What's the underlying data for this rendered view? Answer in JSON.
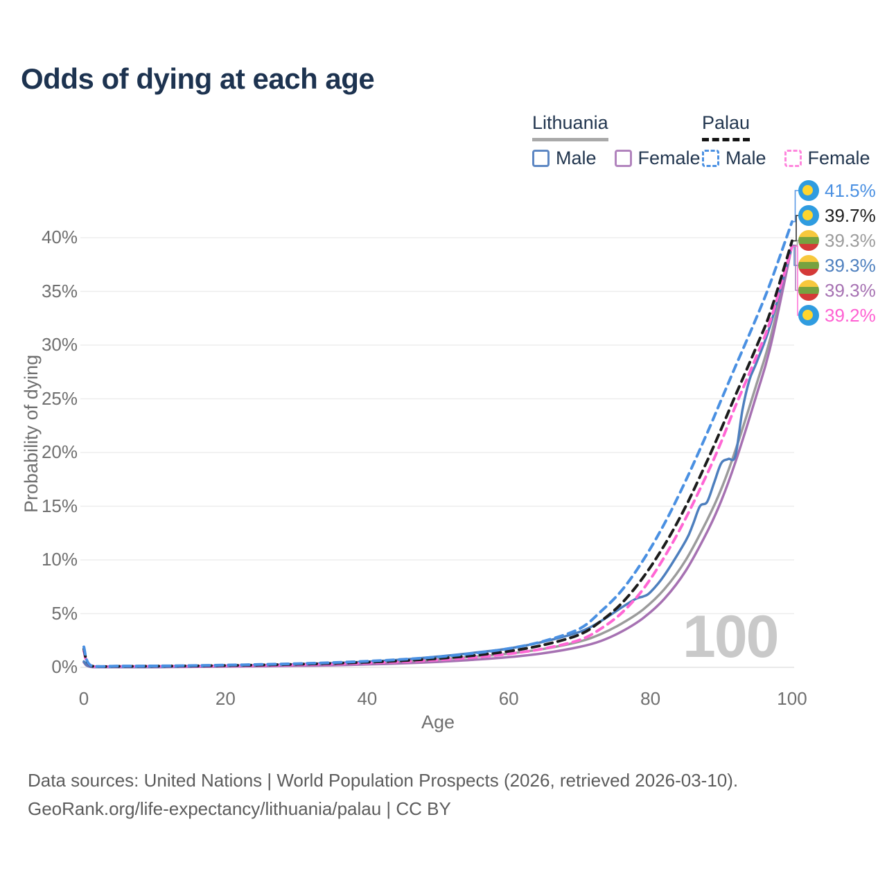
{
  "title": "Odds of dying at each age",
  "watermark": "100",
  "legend": {
    "groups": [
      {
        "label": "Lithuania",
        "underline": "solid",
        "underline_color": "#a9a9a9",
        "items": [
          {
            "label": "Male",
            "box": "solid",
            "color": "#5d87c3"
          },
          {
            "label": "Female",
            "box": "solid",
            "color": "#b183bd"
          }
        ]
      },
      {
        "label": "Palau",
        "underline": "dashed",
        "underline_color": "#141414",
        "items": [
          {
            "label": "Male",
            "box": "dashed",
            "color": "#4a90e2"
          },
          {
            "label": "Female",
            "box": "dashed",
            "color": "#ff85dd"
          }
        ]
      }
    ]
  },
  "flag_colors": {
    "palau": {
      "field": "#2f9ce0",
      "moon": "#ffd52e"
    },
    "lithuania": {
      "yellow": "#f7c83d",
      "green": "#76a240",
      "red": "#d43a38"
    }
  },
  "footer": {
    "line1": "Data sources: United Nations | World Population Prospects (2026, retrieved 2026-03-10).",
    "line2": "GeoRank.org/life-expectancy/lithuania/palau | CC BY"
  },
  "chart_data": {
    "type": "line",
    "title": "Odds of dying at each age",
    "xlabel": "Age",
    "ylabel": "Probability of dying",
    "xlim": [
      0,
      100
    ],
    "ylim": [
      0,
      43
    ],
    "grid": "horizontal",
    "x_ticks": [
      0,
      20,
      40,
      60,
      80,
      100
    ],
    "y_ticks": [
      {
        "value": 0,
        "label": "0%"
      },
      {
        "value": 5,
        "label": "5%"
      },
      {
        "value": 10,
        "label": "10%"
      },
      {
        "value": 15,
        "label": "15%"
      },
      {
        "value": 20,
        "label": "20%"
      },
      {
        "value": 25,
        "label": "25%"
      },
      {
        "value": 30,
        "label": "30%"
      },
      {
        "value": 35,
        "label": "35%"
      },
      {
        "value": 40,
        "label": "40%"
      }
    ],
    "series": [
      {
        "id": "palau-male",
        "name": "Palau Male",
        "country": "Palau",
        "flag": "palau",
        "line": "dashed",
        "color": "#4a90e2",
        "label_color": "#4a90e2",
        "end_label": "41.5%",
        "points": [
          [
            0,
            1.9
          ],
          [
            1,
            0.16
          ],
          [
            5,
            0.12
          ],
          [
            10,
            0.13
          ],
          [
            15,
            0.16
          ],
          [
            20,
            0.21
          ],
          [
            25,
            0.27
          ],
          [
            30,
            0.34
          ],
          [
            35,
            0.44
          ],
          [
            40,
            0.57
          ],
          [
            45,
            0.74
          ],
          [
            50,
            0.97
          ],
          [
            55,
            1.3
          ],
          [
            60,
            1.75
          ],
          [
            65,
            2.45
          ],
          [
            70,
            3.6
          ],
          [
            73,
            5.2
          ],
          [
            76,
            7.2
          ],
          [
            79,
            10.0
          ],
          [
            82,
            13.4
          ],
          [
            85,
            17.4
          ],
          [
            88,
            21.8
          ],
          [
            90,
            24.9
          ],
          [
            92,
            28.0
          ],
          [
            95,
            32.6
          ],
          [
            97,
            35.9
          ],
          [
            100,
            41.5
          ]
        ]
      },
      {
        "id": "palau-total",
        "name": "Palau",
        "country": "Palau",
        "flag": "palau",
        "line": "dashed",
        "color": "#1c1c1c",
        "label_color": "#1c1c1c",
        "end_label": "39.7%",
        "points": [
          [
            0,
            1.7
          ],
          [
            1,
            0.14
          ],
          [
            5,
            0.1
          ],
          [
            10,
            0.11
          ],
          [
            15,
            0.13
          ],
          [
            20,
            0.17
          ],
          [
            25,
            0.22
          ],
          [
            30,
            0.29
          ],
          [
            35,
            0.37
          ],
          [
            40,
            0.48
          ],
          [
            45,
            0.62
          ],
          [
            50,
            0.82
          ],
          [
            55,
            1.1
          ],
          [
            60,
            1.5
          ],
          [
            65,
            2.1
          ],
          [
            70,
            3.05
          ],
          [
            73,
            4.3
          ],
          [
            76,
            6.0
          ],
          [
            79,
            8.4
          ],
          [
            82,
            11.4
          ],
          [
            85,
            15.0
          ],
          [
            88,
            19.2
          ],
          [
            90,
            22.2
          ],
          [
            92,
            25.3
          ],
          [
            95,
            29.9
          ],
          [
            97,
            33.2
          ],
          [
            100,
            39.7
          ]
        ]
      },
      {
        "id": "lithuania-total",
        "name": "Lithuania",
        "country": "Lithuania",
        "flag": "lithuania",
        "line": "solid",
        "color": "#9b9b9b",
        "label_color": "#9b9b9b",
        "end_label": "39.3%",
        "points": [
          [
            0,
            0.5
          ],
          [
            1,
            0.05
          ],
          [
            5,
            0.03
          ],
          [
            10,
            0.03
          ],
          [
            15,
            0.07
          ],
          [
            20,
            0.11
          ],
          [
            25,
            0.16
          ],
          [
            30,
            0.22
          ],
          [
            35,
            0.3
          ],
          [
            40,
            0.4
          ],
          [
            45,
            0.54
          ],
          [
            50,
            0.74
          ],
          [
            55,
            0.98
          ],
          [
            60,
            1.28
          ],
          [
            65,
            1.72
          ],
          [
            70,
            2.4
          ],
          [
            73,
            3.1
          ],
          [
            76,
            4.1
          ],
          [
            79,
            5.4
          ],
          [
            82,
            7.3
          ],
          [
            85,
            10.0
          ],
          [
            88,
            13.7
          ],
          [
            90,
            16.6
          ],
          [
            92,
            20.2
          ],
          [
            95,
            26.4
          ],
          [
            97,
            30.8
          ],
          [
            100,
            39.3
          ]
        ]
      },
      {
        "id": "lithuania-male",
        "name": "Lithuania Male",
        "country": "Lithuania",
        "flag": "lithuania",
        "line": "solid",
        "color": "#4d7fbe",
        "label_color": "#4d7fbe",
        "end_label": "39.3%",
        "points": [
          [
            0,
            0.55
          ],
          [
            1,
            0.06
          ],
          [
            5,
            0.04
          ],
          [
            10,
            0.04
          ],
          [
            15,
            0.09
          ],
          [
            20,
            0.14
          ],
          [
            25,
            0.21
          ],
          [
            30,
            0.29
          ],
          [
            35,
            0.39
          ],
          [
            40,
            0.52
          ],
          [
            45,
            0.72
          ],
          [
            50,
            1.0
          ],
          [
            55,
            1.35
          ],
          [
            60,
            1.75
          ],
          [
            65,
            2.4
          ],
          [
            70,
            3.3
          ],
          [
            73,
            4.3
          ],
          [
            76,
            5.6
          ],
          [
            78,
            6.4
          ],
          [
            79,
            6.6
          ],
          [
            80,
            7.0
          ],
          [
            82,
            8.6
          ],
          [
            85,
            11.8
          ],
          [
            86,
            13.3
          ],
          [
            87,
            15.0
          ],
          [
            88,
            15.4
          ],
          [
            89,
            17.2
          ],
          [
            90,
            19.0
          ],
          [
            91,
            19.4
          ],
          [
            92,
            19.7
          ],
          [
            93,
            24.0
          ],
          [
            94,
            26.8
          ],
          [
            95,
            28.4
          ],
          [
            97,
            32.0
          ],
          [
            100,
            39.3
          ]
        ]
      },
      {
        "id": "lithuania-female",
        "name": "Lithuania Female",
        "country": "Lithuania",
        "flag": "lithuania",
        "line": "solid",
        "color": "#a671b2",
        "label_color": "#a671b2",
        "end_label": "39.3%",
        "points": [
          [
            0,
            0.45
          ],
          [
            1,
            0.04
          ],
          [
            5,
            0.02
          ],
          [
            10,
            0.02
          ],
          [
            15,
            0.04
          ],
          [
            20,
            0.07
          ],
          [
            25,
            0.1
          ],
          [
            30,
            0.14
          ],
          [
            35,
            0.19
          ],
          [
            40,
            0.27
          ],
          [
            45,
            0.37
          ],
          [
            50,
            0.51
          ],
          [
            55,
            0.7
          ],
          [
            60,
            0.95
          ],
          [
            65,
            1.32
          ],
          [
            70,
            1.9
          ],
          [
            73,
            2.45
          ],
          [
            76,
            3.35
          ],
          [
            79,
            4.6
          ],
          [
            82,
            6.4
          ],
          [
            85,
            9.0
          ],
          [
            88,
            12.6
          ],
          [
            90,
            15.5
          ],
          [
            92,
            19.1
          ],
          [
            95,
            25.4
          ],
          [
            97,
            30.0
          ],
          [
            100,
            39.3
          ]
        ]
      },
      {
        "id": "palau-female",
        "name": "Palau Female",
        "country": "Palau",
        "flag": "palau",
        "line": "dashed",
        "color": "#ff66d4",
        "label_color": "#ff5fd2",
        "end_label": "39.2%",
        "points": [
          [
            0,
            1.5
          ],
          [
            1,
            0.12
          ],
          [
            5,
            0.09
          ],
          [
            10,
            0.1
          ],
          [
            15,
            0.11
          ],
          [
            20,
            0.14
          ],
          [
            25,
            0.18
          ],
          [
            30,
            0.24
          ],
          [
            35,
            0.31
          ],
          [
            40,
            0.4
          ],
          [
            45,
            0.52
          ],
          [
            50,
            0.69
          ],
          [
            55,
            0.92
          ],
          [
            60,
            1.25
          ],
          [
            65,
            1.75
          ],
          [
            70,
            2.55
          ],
          [
            73,
            3.6
          ],
          [
            76,
            5.1
          ],
          [
            79,
            7.3
          ],
          [
            82,
            10.3
          ],
          [
            85,
            13.9
          ],
          [
            88,
            18.0
          ],
          [
            90,
            21.0
          ],
          [
            92,
            24.3
          ],
          [
            95,
            29.0
          ],
          [
            97,
            32.4
          ],
          [
            100,
            39.2
          ]
        ]
      }
    ]
  }
}
